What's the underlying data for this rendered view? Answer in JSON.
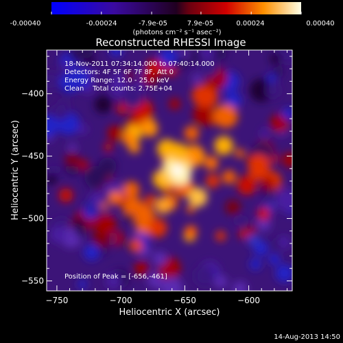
{
  "chart_data": {
    "type": "heatmap",
    "title": "Reconstructed RHESSI Image",
    "xlabel": "Heliocentric X (arcsec)",
    "ylabel": "Heliocentric Y (arcsec)",
    "xlim": [
      -758,
      -566
    ],
    "ylim": [
      -558,
      -365
    ],
    "x_ticks": [
      -750,
      -700,
      -650,
      -600
    ],
    "y_ticks": [
      -400,
      -450,
      -500,
      -550
    ],
    "colorbar": {
      "ticks": [
        "-0.00040",
        "-0.00024",
        "-7.9e-05",
        "7.9e-05",
        "0.00024",
        "0.00040"
      ],
      "tick_values": [
        -0.0004,
        -0.00024,
        -7.9e-05,
        7.9e-05,
        0.00024,
        0.0004
      ],
      "range": [
        -0.0004,
        0.0004
      ],
      "unit_label": "(photons cm⁻² s⁻¹ asec⁻²)"
    },
    "annotations": [
      "18-Nov-2011 07:34:14.000 to 07:40:14.000",
      "Detectors: 4F 5F 6F 7F 8F, Att 0",
      "Energy Range: 12.0 - 25.0 keV",
      "Clean    Total counts: 2.75E+04",
      "Position of Peak = [-656,-461]"
    ],
    "peak": {
      "x": -656,
      "y": -461
    },
    "timestamp": "14-Aug-2013 14:50",
    "grid": false
  }
}
